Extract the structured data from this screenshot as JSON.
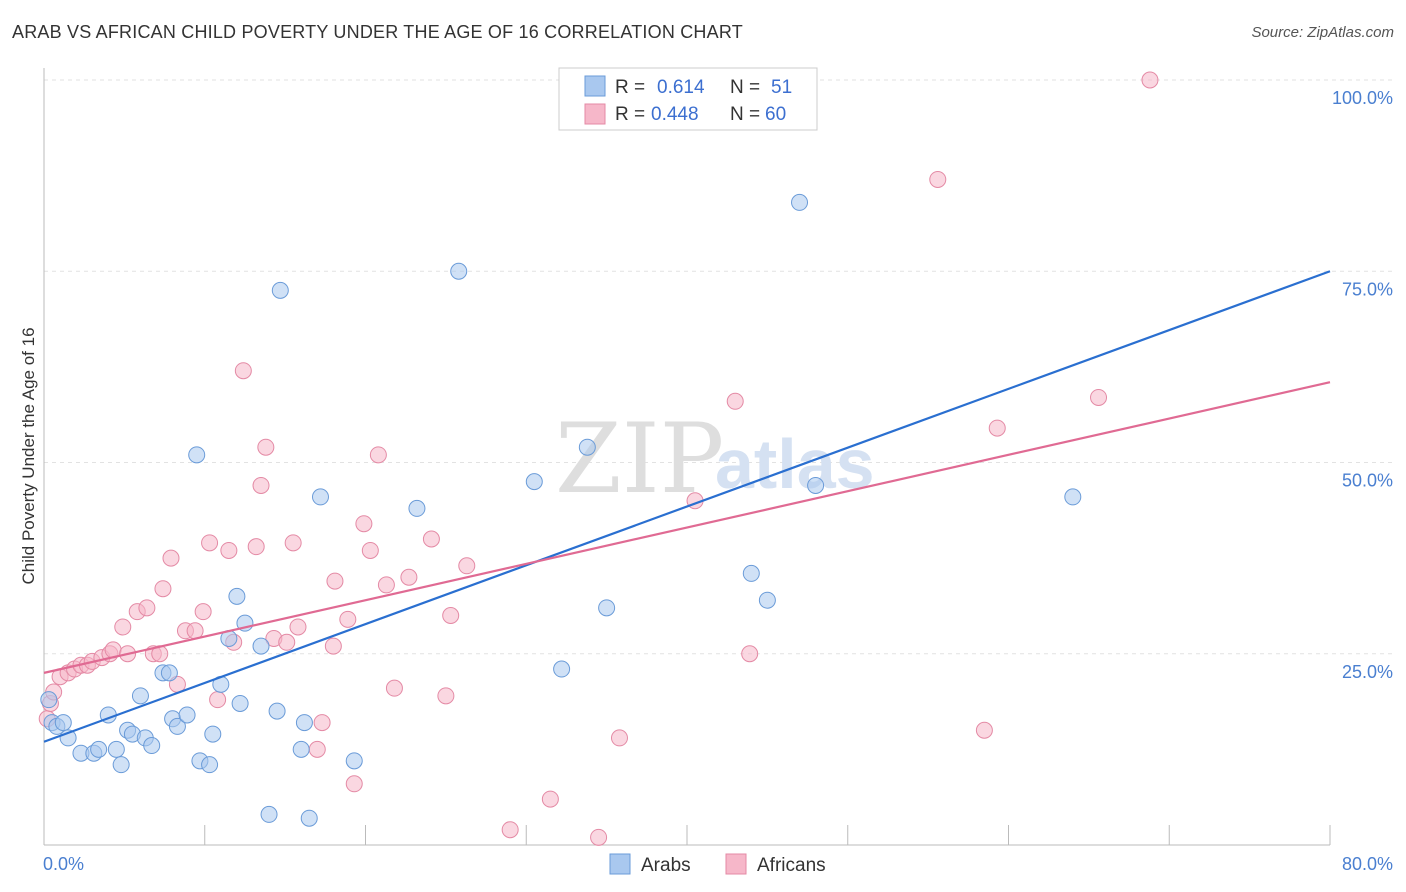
{
  "header": {
    "title": "ARAB VS AFRICAN CHILD POVERTY UNDER THE AGE OF 16 CORRELATION CHART",
    "source": "Source: ZipAtlas.com"
  },
  "watermark": {
    "zip": "ZIP",
    "atlas": "atlas"
  },
  "legend": {
    "r_label": "R =",
    "n_label": "N =",
    "entries": [
      {
        "r": "0.614",
        "n": "51",
        "color": "#a9c8ef"
      },
      {
        "r": "0.448",
        "n": "60",
        "color": "#f6b7c9"
      }
    ]
  },
  "chart_data": {
    "type": "scatter",
    "title": "ARAB VS AFRICAN CHILD POVERTY UNDER THE AGE OF 16 CORRELATION CHART",
    "ylabel": "Child Poverty Under the Age of 16",
    "xlabel": "",
    "xlim": [
      0,
      80
    ],
    "ylim": [
      0,
      100
    ],
    "x_tick_labels": [
      "0.0%",
      "80.0%"
    ],
    "y_ticks": [
      25,
      50,
      75,
      100
    ],
    "y_tick_labels": [
      "25.0%",
      "50.0%",
      "75.0%",
      "100.0%"
    ],
    "grid": true,
    "legend_position": "top-center",
    "series": [
      {
        "name": "Arabs",
        "color": "#a9c8ef",
        "stroke": "#6a9bd8",
        "line_color": "#2a6fd0",
        "r": 0.614,
        "n": 51,
        "trend": {
          "x": [
            0,
            80
          ],
          "y": [
            13.5,
            75
          ]
        },
        "points": [
          [
            0.3,
            19
          ],
          [
            0.5,
            16
          ],
          [
            0.8,
            15.5
          ],
          [
            1.2,
            16
          ],
          [
            1.5,
            14
          ],
          [
            2.3,
            12
          ],
          [
            3.1,
            12
          ],
          [
            3.4,
            12.5
          ],
          [
            4.0,
            17
          ],
          [
            4.5,
            12.5
          ],
          [
            4.8,
            10.5
          ],
          [
            5.2,
            15
          ],
          [
            5.5,
            14.5
          ],
          [
            6.0,
            19.5
          ],
          [
            6.3,
            14
          ],
          [
            6.7,
            13
          ],
          [
            7.4,
            22.5
          ],
          [
            7.8,
            22.5
          ],
          [
            8.0,
            16.5
          ],
          [
            8.3,
            15.5
          ],
          [
            8.9,
            17
          ],
          [
            9.5,
            51
          ],
          [
            9.7,
            11
          ],
          [
            10.3,
            10.5
          ],
          [
            10.5,
            14.5
          ],
          [
            11.0,
            21
          ],
          [
            11.5,
            27
          ],
          [
            12.0,
            32.5
          ],
          [
            12.2,
            18.5
          ],
          [
            12.5,
            29
          ],
          [
            13.5,
            26
          ],
          [
            14.0,
            4
          ],
          [
            14.5,
            17.5
          ],
          [
            14.7,
            72.5
          ],
          [
            16.0,
            12.5
          ],
          [
            16.2,
            16
          ],
          [
            16.5,
            3.5
          ],
          [
            17.2,
            45.5
          ],
          [
            19.3,
            11
          ],
          [
            23.2,
            44
          ],
          [
            25.8,
            75
          ],
          [
            30.5,
            47.5
          ],
          [
            32.2,
            23
          ],
          [
            33.8,
            52
          ],
          [
            35.0,
            31
          ],
          [
            44.0,
            35.5
          ],
          [
            45.0,
            32
          ],
          [
            47.0,
            84
          ],
          [
            48.0,
            47
          ],
          [
            64.0,
            45.5
          ]
        ]
      },
      {
        "name": "Africans",
        "color": "#f6b7c9",
        "stroke": "#e48aa5",
        "line_color": "#e06a93",
        "r": 0.448,
        "n": 60,
        "trend": {
          "x": [
            0,
            80
          ],
          "y": [
            22.5,
            60.5
          ]
        },
        "points": [
          [
            0.2,
            16.5
          ],
          [
            0.4,
            18.5
          ],
          [
            0.6,
            20
          ],
          [
            1.0,
            22
          ],
          [
            1.5,
            22.5
          ],
          [
            1.9,
            23
          ],
          [
            2.3,
            23.5
          ],
          [
            2.7,
            23.5
          ],
          [
            3.0,
            24
          ],
          [
            3.6,
            24.5
          ],
          [
            4.1,
            25
          ],
          [
            4.3,
            25.5
          ],
          [
            4.9,
            28.5
          ],
          [
            5.2,
            25
          ],
          [
            5.8,
            30.5
          ],
          [
            6.4,
            31
          ],
          [
            6.8,
            25
          ],
          [
            7.2,
            25
          ],
          [
            7.4,
            33.5
          ],
          [
            7.9,
            37.5
          ],
          [
            8.3,
            21
          ],
          [
            8.8,
            28
          ],
          [
            9.4,
            28
          ],
          [
            9.9,
            30.5
          ],
          [
            10.3,
            39.5
          ],
          [
            10.8,
            19
          ],
          [
            11.5,
            38.5
          ],
          [
            11.8,
            26.5
          ],
          [
            12.4,
            62
          ],
          [
            13.2,
            39
          ],
          [
            13.5,
            47
          ],
          [
            13.8,
            52
          ],
          [
            14.3,
            27
          ],
          [
            15.1,
            26.5
          ],
          [
            15.5,
            39.5
          ],
          [
            15.8,
            28.5
          ],
          [
            17.0,
            12.5
          ],
          [
            17.3,
            16
          ],
          [
            18.0,
            26
          ],
          [
            18.1,
            34.5
          ],
          [
            18.9,
            29.5
          ],
          [
            19.3,
            8
          ],
          [
            19.9,
            42
          ],
          [
            20.3,
            38.5
          ],
          [
            20.8,
            51
          ],
          [
            21.3,
            34
          ],
          [
            21.8,
            20.5
          ],
          [
            22.7,
            35
          ],
          [
            24.1,
            40
          ],
          [
            25.0,
            19.5
          ],
          [
            25.3,
            30
          ],
          [
            26.3,
            36.5
          ],
          [
            29.0,
            2
          ],
          [
            31.5,
            6
          ],
          [
            34.5,
            1
          ],
          [
            35.8,
            14
          ],
          [
            40.5,
            45
          ],
          [
            43.0,
            58
          ],
          [
            43.9,
            25
          ],
          [
            55.6,
            87
          ],
          [
            58.5,
            15
          ],
          [
            59.3,
            54.5
          ],
          [
            65.6,
            58.5
          ],
          [
            68.8,
            100
          ]
        ]
      }
    ]
  },
  "bottom_legend": [
    {
      "label": "Arabs",
      "color": "#a9c8ef"
    },
    {
      "label": "Africans",
      "color": "#f6b7c9"
    }
  ]
}
